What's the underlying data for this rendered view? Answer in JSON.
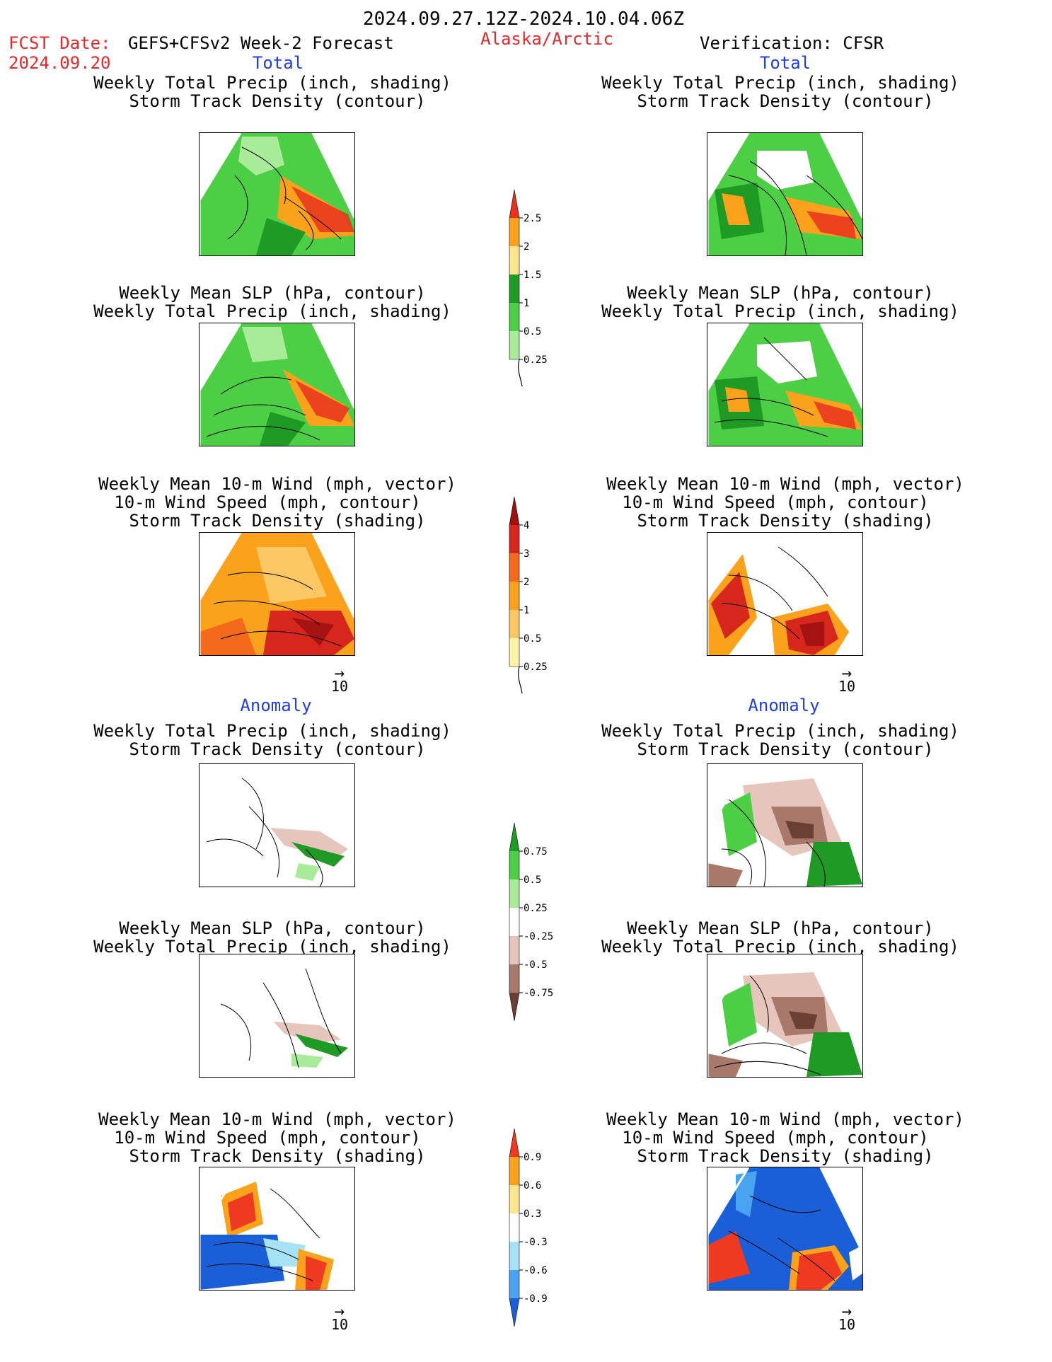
{
  "header": {
    "period": "2024.09.27.12Z-2024.10.04.06Z",
    "fcst_label": "FCST Date:",
    "model": "GEFS+CFSv2 Week-2 Forecast",
    "fcst_date": "2024.09.20",
    "region": "Alaska/Arctic",
    "verification": "Verification: CFSR"
  },
  "sections": {
    "total": "Total",
    "anomaly": "Anomaly"
  },
  "titles": {
    "precip_storm": [
      "Weekly Total Precip (inch, shading)",
      "Storm Track Density (contour)"
    ],
    "slp_precip": [
      "Weekly Mean SLP (hPa, contour)",
      "Weekly Total Precip (inch, shading)"
    ],
    "wind_storm": [
      "Weekly Mean 10-m Wind (mph, vector)",
      "10-m Wind Speed (mph, contour)",
      "Storm Track Density (shading)"
    ]
  },
  "vector_scale": "10",
  "colorbars": {
    "precip_total": {
      "labels": [
        "2.5",
        "2",
        "1.5",
        "1",
        "0.5",
        "0.25"
      ],
      "colors": [
        "#e8321e",
        "#fba21c",
        "#fee48a",
        "#1f9a25",
        "#4ccf45",
        "#a8ec9a"
      ]
    },
    "storm_total": {
      "labels": [
        "4",
        "3",
        "2",
        "1",
        "0.5",
        "0.25"
      ],
      "colors": [
        "#9c1210",
        "#d7261c",
        "#f46a1c",
        "#fba21c",
        "#fdc864",
        "#fff4a8"
      ]
    },
    "precip_anom": {
      "labels": [
        "0.75",
        "0.5",
        "0.25",
        "-0.25",
        "-0.5",
        "-0.75"
      ],
      "colors": [
        "#1f9a25",
        "#4ccf45",
        "#a8ec9a",
        "#ffffff",
        "#e6c6bc",
        "#a8786a",
        "#6a4034"
      ]
    },
    "storm_anom": {
      "labels": [
        "0.9",
        "0.6",
        "0.3",
        "-0.3",
        "-0.6",
        "-0.9"
      ],
      "colors": [
        "#ee3a20",
        "#fba21c",
        "#fee48a",
        "#ffffff",
        "#a6e2f6",
        "#4aa3f0",
        "#1a5fd8"
      ]
    }
  }
}
